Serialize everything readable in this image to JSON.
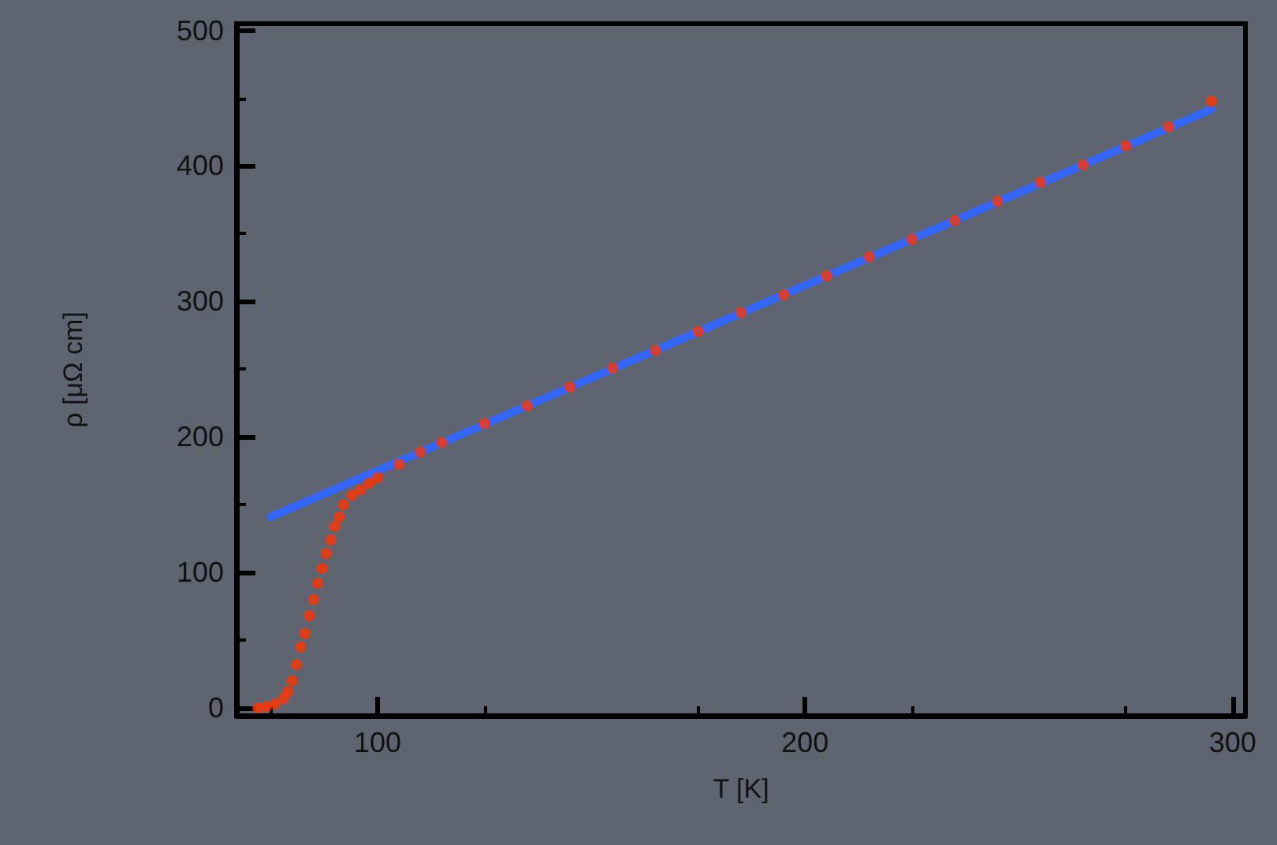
{
  "chart_data": {
    "type": "scatter",
    "xlabel": "T [K]",
    "ylabel": "ρ [μΩ cm]",
    "xlim": [
      67,
      303
    ],
    "ylim": [
      -6,
      505
    ],
    "xticks": [
      100,
      200,
      300
    ],
    "yticks": [
      0,
      100,
      200,
      300,
      400,
      500
    ],
    "grid": false,
    "series": [
      {
        "marker": "circle",
        "color": "#ff3300",
        "x": [
          72,
          74,
          76,
          78,
          79,
          80,
          81,
          82,
          83,
          84,
          85,
          86,
          87,
          88,
          89,
          90,
          91,
          92,
          94,
          96,
          98,
          100,
          105,
          110,
          115,
          125,
          135,
          145,
          155,
          165,
          175,
          185,
          195,
          205,
          215,
          225,
          235,
          245,
          255,
          265,
          275,
          285,
          295
        ],
        "values": [
          0,
          1,
          3,
          7,
          12,
          20,
          32,
          45,
          55,
          68,
          80,
          92,
          103,
          114,
          124,
          134,
          141,
          150,
          157,
          161,
          166,
          170,
          180,
          189,
          196,
          210,
          223,
          237,
          251,
          264,
          278,
          292,
          305,
          319,
          333,
          346,
          360,
          374,
          388,
          401,
          415,
          429,
          448
        ]
      },
      {
        "type": "line",
        "marker": "none",
        "line_style": "solid",
        "color": "#3366ff",
        "x": [
          75,
          295
        ],
        "values": [
          141,
          442
        ]
      }
    ]
  }
}
